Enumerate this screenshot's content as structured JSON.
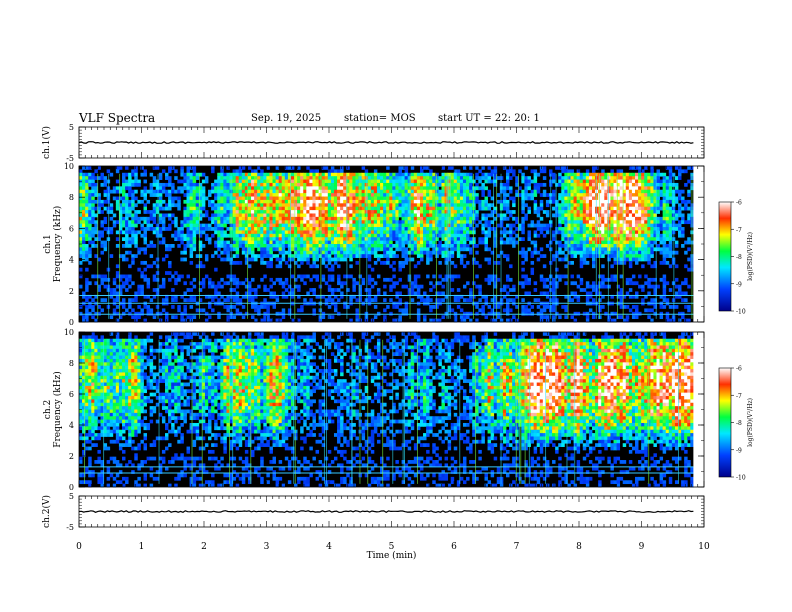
{
  "header": {
    "title": "VLF Spectra",
    "date": "Sep. 19, 2025",
    "station": "station= MOS",
    "start": "start  UT  =   22: 20: 1"
  },
  "chart_data": [
    {
      "type": "line",
      "ylabel": "ch.1(V)",
      "ylim": [
        -5,
        5
      ],
      "yticks": [
        "5",
        "-5"
      ],
      "level": 0,
      "x_range": [
        0,
        9.83
      ]
    },
    {
      "type": "heatmap",
      "ylabel": "ch.1\nFrequency (kHz)",
      "ylim": [
        0,
        10
      ],
      "yticks": [
        "10",
        "8",
        "6",
        "4",
        "2",
        "0"
      ],
      "band_khz": [
        3,
        9.5
      ],
      "peak_khz": 7.5,
      "lines_khz": [
        0.5,
        1.2,
        1.7
      ],
      "x_range": [
        0,
        9.83
      ],
      "colorbar": {
        "label": "log(PSD)(V²/Hz)",
        "range": [
          -10,
          -6
        ],
        "ticks": [
          "-6",
          "-7",
          "-8",
          "-9",
          "-10"
        ]
      }
    },
    {
      "type": "heatmap",
      "ylabel": "ch.2\nFrequency (kHz)",
      "ylim": [
        0,
        10
      ],
      "yticks": [
        "10",
        "8",
        "6",
        "4",
        "2",
        "0"
      ],
      "band_khz": [
        2,
        9.5
      ],
      "peak_khz": 6.8,
      "lines_khz": [
        0.9,
        1.3
      ],
      "x_range": [
        0,
        9.83
      ],
      "colorbar": {
        "label": "log(PSD)(V²/Hz)",
        "range": [
          -10,
          -6
        ],
        "ticks": [
          "-6",
          "-7",
          "-8",
          "-9",
          "-10"
        ]
      }
    },
    {
      "type": "line",
      "ylabel": "ch.2(V)",
      "ylim": [
        -5,
        5
      ],
      "yticks": [
        "5",
        "-5"
      ],
      "level": 0,
      "x_range": [
        0,
        9.83
      ]
    }
  ],
  "xaxis": {
    "label": "Time  (min)",
    "range": [
      0,
      10
    ],
    "ticks": [
      "0",
      "1",
      "2",
      "3",
      "4",
      "5",
      "6",
      "7",
      "8",
      "9",
      "10"
    ]
  }
}
